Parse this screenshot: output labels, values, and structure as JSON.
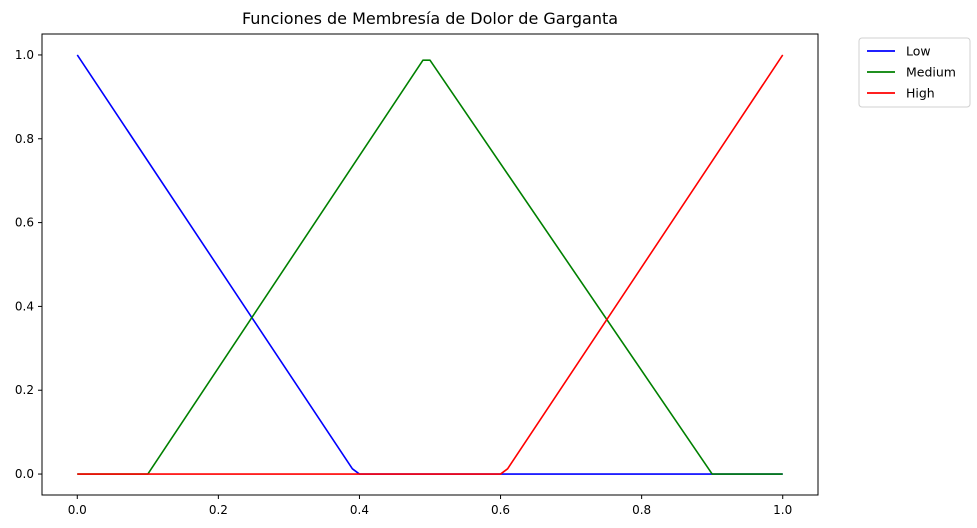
{
  "chart_data": {
    "type": "line",
    "title": "Funciones de Membresía de Dolor de Garganta",
    "xlabel": "",
    "ylabel": "",
    "xlim": [
      -0.05,
      1.05
    ],
    "ylim": [
      -0.05,
      1.05
    ],
    "x_ticks": [
      "0.0",
      "0.2",
      "0.4",
      "0.6",
      "0.8",
      "1.0"
    ],
    "y_ticks": [
      "0.0",
      "0.2",
      "0.4",
      "0.6",
      "0.8",
      "1.0"
    ],
    "grid": false,
    "legend_placement": "outside-top-right",
    "series": [
      {
        "name": "Low",
        "color": "#0000ff",
        "x": [
          0.0,
          0.39,
          0.4,
          1.0
        ],
        "y": [
          1.0,
          0.0125,
          0.0,
          0.0
        ]
      },
      {
        "name": "Medium",
        "color": "#008000",
        "x": [
          0.0,
          0.1,
          0.49,
          0.5,
          0.9,
          1.0
        ],
        "y": [
          0.0,
          0.0,
          0.9875,
          0.9875,
          0.0,
          0.0
        ]
      },
      {
        "name": "High",
        "color": "#ff0000",
        "x": [
          0.0,
          0.6,
          0.61,
          1.0
        ],
        "y": [
          0.0,
          0.0,
          0.0125,
          1.0
        ]
      }
    ]
  }
}
